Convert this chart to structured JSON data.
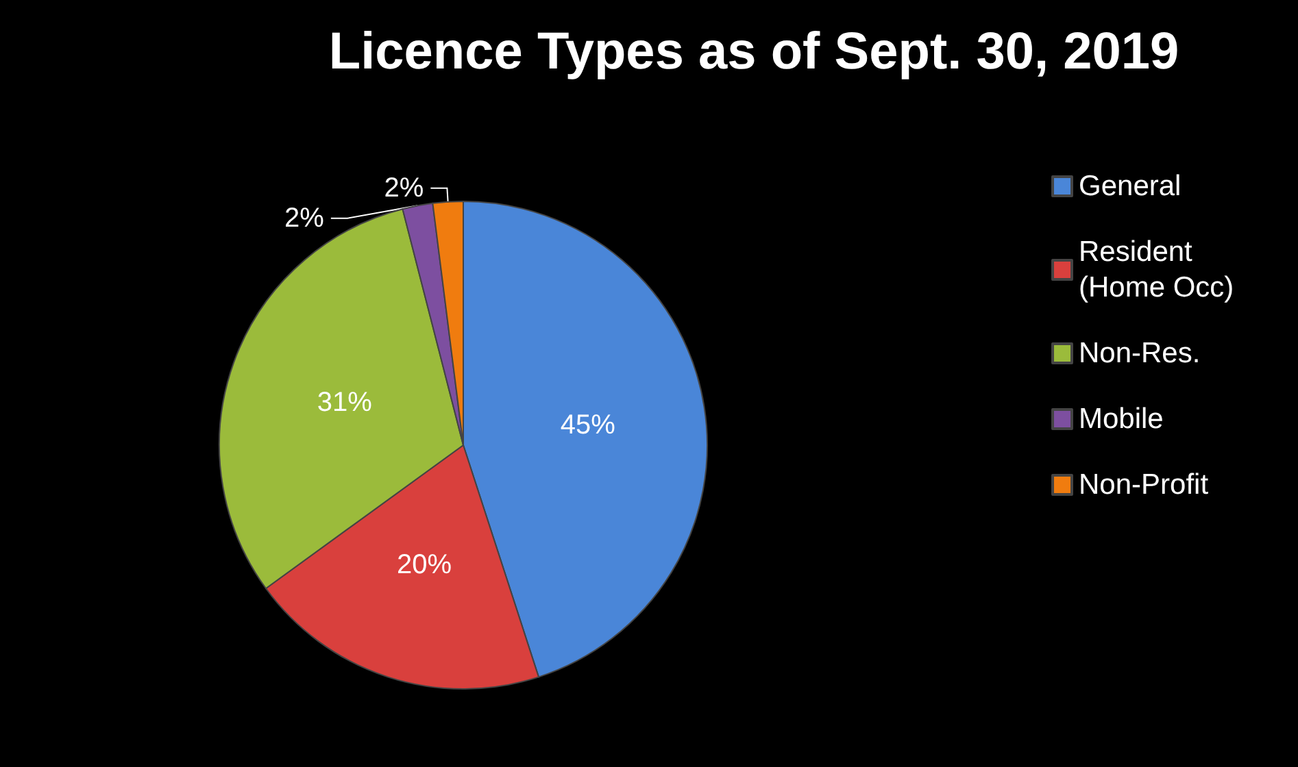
{
  "chart_data": {
    "type": "pie",
    "title": "Licence Types as of Sept. 30, 2019",
    "categories": [
      "General",
      "Resident (Home Occ)",
      "Non-Res.",
      "Mobile",
      "Non-Profit"
    ],
    "values": [
      45,
      20,
      31,
      2,
      2
    ],
    "colors": [
      "#4a86d8",
      "#d9403d",
      "#9bbb3b",
      "#7d4fa0",
      "#f07c0f"
    ],
    "value_labels": [
      "45%",
      "20%",
      "31%",
      "2%",
      "2%"
    ],
    "legend": "right"
  }
}
